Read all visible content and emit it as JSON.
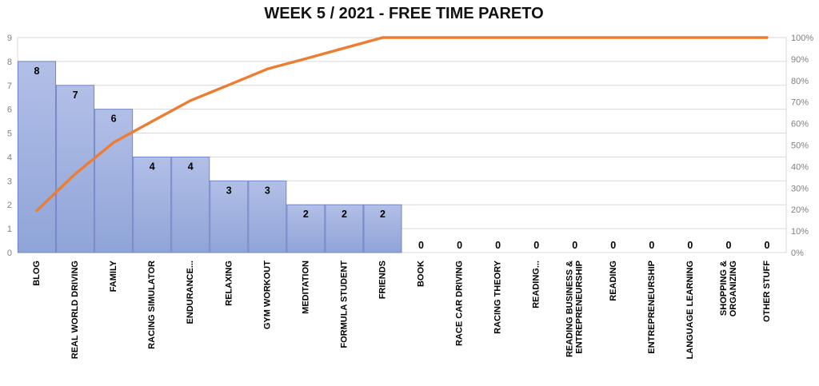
{
  "title": "WEEK 5 / 2021 - FREE TIME PARETO",
  "chart_data": {
    "type": "bar",
    "subtype": "pareto-combo-bar-line",
    "title": "WEEK 5 / 2021 - FREE TIME PARETO",
    "categories": [
      "BLOG",
      "REAL WORLD DRIVING",
      "FAMILY",
      "RACING SIMULATOR",
      "ENDURANCE...",
      "RELAXING",
      "GYM WORKOUT",
      "MEDITATION",
      "FORMULA STUDENT",
      "FRIENDS",
      "BOOK",
      "RACE CAR DRIVING",
      "RACING THEORY",
      "READING...",
      "READING BUSINESS &\nENTREPRENEURSHIP",
      "READING",
      "ENTREPRENEURSHIP",
      "LANGUAGE LEARNING",
      "SHOPPING &\nORGANIZING",
      "OTHER STUFF"
    ],
    "series": [
      {
        "name": "bar-values",
        "type": "bar",
        "values": [
          8,
          7,
          6,
          4,
          4,
          3,
          3,
          2,
          2,
          2,
          0,
          0,
          0,
          0,
          0,
          0,
          0,
          0,
          0,
          0
        ]
      },
      {
        "name": "cumulative-percent-line",
        "type": "line",
        "values": [
          19.5,
          36.6,
          51.2,
          61,
          70.7,
          78,
          85.4,
          90.2,
          95.1,
          100,
          100,
          100,
          100,
          100,
          100,
          100,
          100,
          100,
          100,
          100
        ]
      }
    ],
    "data_labels": [
      "8",
      "7",
      "6",
      "4",
      "4",
      "3",
      "3",
      "2",
      "2",
      "2",
      "0",
      "0",
      "0",
      "0",
      "0",
      "0",
      "0",
      "0",
      "0",
      "0"
    ],
    "left_axis": {
      "min": 0,
      "max": 9,
      "ticks": [
        "0",
        "1",
        "2",
        "3",
        "4",
        "5",
        "6",
        "7",
        "8",
        "9"
      ]
    },
    "right_axis": {
      "min": "0%",
      "max": "100%",
      "ticks": [
        "0%",
        "10%",
        "20%",
        "30%",
        "40%",
        "50%",
        "60%",
        "70%",
        "80%",
        "90%",
        "100%"
      ]
    },
    "grid": "horizontal",
    "legend": "none",
    "colors": {
      "bar_fill_top": "#b2bfe7",
      "bar_fill_bottom": "#8fa4d8",
      "bar_border": "#7486c9",
      "line": "#ed7d31",
      "gridline": "#d9d9d9",
      "axis_text": "#808080",
      "label_text": "#000000",
      "title_text": "#111111",
      "background": "#ffffff"
    }
  }
}
